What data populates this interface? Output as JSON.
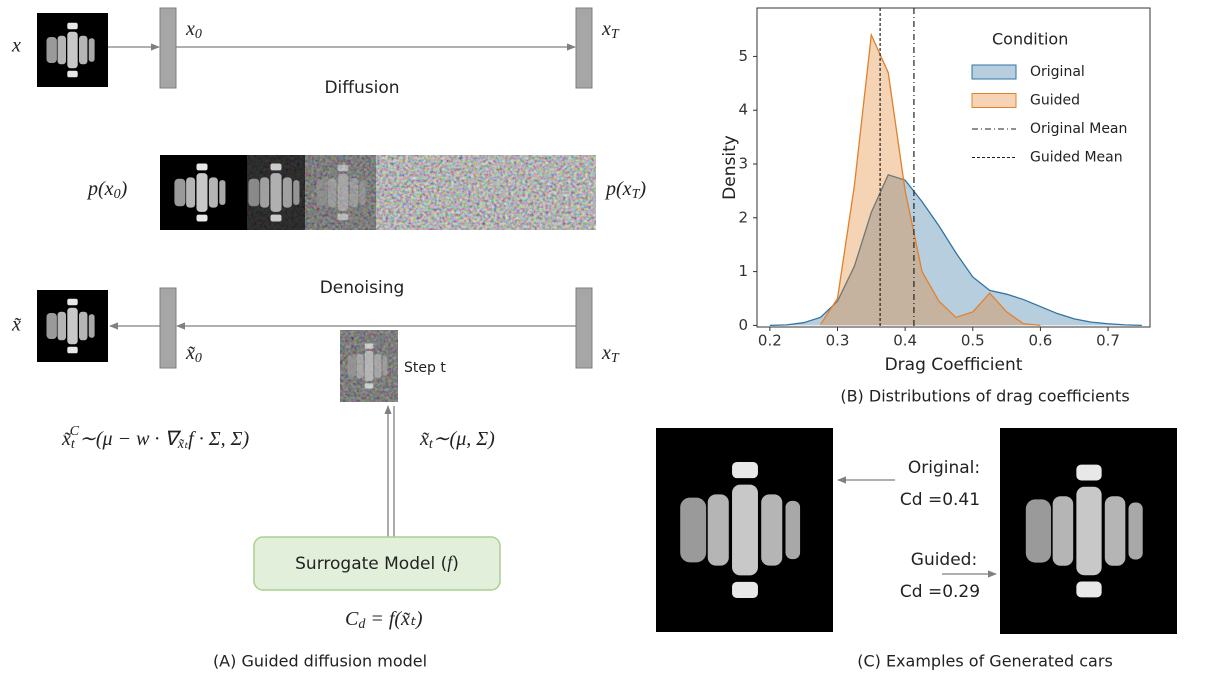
{
  "panel_a": {
    "input": "x",
    "x0": {
      "base": "x",
      "sub": "0"
    },
    "xT": {
      "base": "x",
      "sub": "T"
    },
    "diffusion": "Diffusion",
    "p_x0": {
      "pre": "p(",
      "base": "x",
      "sub": "0",
      "post": ")"
    },
    "p_xT": {
      "pre": "p(",
      "base": "x",
      "sub": "T",
      "post": ")"
    },
    "denoising": "Denoising",
    "output": "x̃",
    "x0_tilde": {
      "base": "x̃",
      "sub": "0"
    },
    "xT_denoise": {
      "base": "x",
      "sub": "T"
    },
    "step": "Step t",
    "guided_formula": {
      "base": "x̃",
      "sub": "t",
      "sup": "C",
      "post": "∼(μ − w · ∇",
      "sub2": "x̃ₜ",
      "post2": "f · Σ, Σ)"
    },
    "formula": {
      "base": "x̃",
      "sub": "t",
      "post": "∼(μ, Σ)"
    },
    "surrogate": {
      "pre": "Surrogate Model (",
      "var": "f",
      "post": ")"
    },
    "cd_formula": {
      "base": "C",
      "sub": "d",
      "post": " = f(x̃ₜ)"
    },
    "caption": "(A) Guided diffusion model"
  },
  "panel_c": {
    "original_label": "Original:",
    "original_cd": "Cd =0.41",
    "guided_label": "Guided:",
    "guided_cd": "Cd =0.29",
    "caption": "(C) Examples of Generated cars"
  },
  "chart_data": {
    "type": "area",
    "caption": "(B) Distributions of drag coefficients",
    "x_label": "Drag Coefficient",
    "y_label": "Density",
    "legend_title": "Condition",
    "x": [
      0.2,
      0.225,
      0.25,
      0.275,
      0.3,
      0.325,
      0.35,
      0.375,
      0.4,
      0.425,
      0.45,
      0.475,
      0.5,
      0.525,
      0.55,
      0.575,
      0.6,
      0.625,
      0.65,
      0.675,
      0.7,
      0.725,
      0.75
    ],
    "series": [
      {
        "name": "Original",
        "color": "#3274a1",
        "values": [
          0,
          0.01,
          0.05,
          0.15,
          0.45,
          1.1,
          2.1,
          2.8,
          2.7,
          2.3,
          1.85,
          1.35,
          0.9,
          0.65,
          0.58,
          0.48,
          0.35,
          0.22,
          0.12,
          0.06,
          0.03,
          0.01,
          0
        ]
      },
      {
        "name": "Guided",
        "color": "#e1812c",
        "values": [
          null,
          null,
          null,
          0.02,
          0.5,
          2.6,
          5.4,
          4.7,
          2.5,
          1.0,
          0.45,
          0.15,
          0.25,
          0.6,
          0.25,
          0.03,
          0,
          null,
          null,
          null,
          null,
          null,
          null
        ]
      }
    ],
    "mean_lines": [
      {
        "name": "Original Mean",
        "value": 0.413,
        "dash": "6 3 1 3"
      },
      {
        "name": "Guided Mean",
        "value": 0.363,
        "dash": "3 2"
      }
    ],
    "xlim": [
      0.181,
      0.762
    ],
    "ylim": [
      -0.03,
      5.9
    ],
    "xticks": [
      0.2,
      0.3,
      0.4,
      0.5,
      0.6,
      0.7
    ],
    "yticks": [
      0,
      1,
      2,
      3,
      4,
      5
    ],
    "legend": "upper right"
  }
}
